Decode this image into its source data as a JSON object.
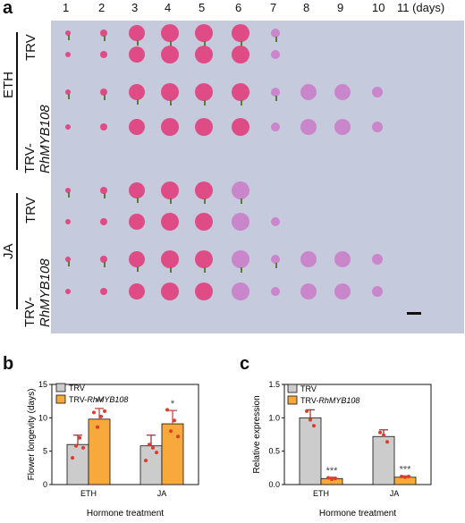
{
  "panel_a": {
    "letter": "a",
    "days": [
      "1",
      "2",
      "3",
      "4",
      "5",
      "6",
      "7",
      "8",
      "9",
      "10",
      "11 (days)"
    ],
    "groups": [
      {
        "hormone": "ETH",
        "rows": [
          {
            "label": "TRV",
            "label_italic": "",
            "counts": [
              7,
              7
            ]
          },
          {
            "label": "TRV-",
            "label_italic": "RhMYB108",
            "counts": [
              10,
              10
            ]
          }
        ]
      },
      {
        "hormone": "JA",
        "rows": [
          {
            "label": "TRV",
            "label_italic": "",
            "counts": [
              6,
              7
            ]
          },
          {
            "label": "TRV-",
            "label_italic": "RhMYB108",
            "counts": [
              10,
              10
            ]
          }
        ]
      }
    ],
    "colors": {
      "background": "#c5cadd",
      "flower": "#e0457f",
      "flower_late": "#c97ac8"
    }
  },
  "panel_b": {
    "letter": "b",
    "legend": [
      {
        "label": "TRV",
        "label_italic": "",
        "color": "#cccccc"
      },
      {
        "label": "TRV-",
        "label_italic": "RhMYB108",
        "color": "#f7a93b"
      }
    ],
    "ylabel": "Flower longevity (days)",
    "xlabel": "Hormone treatment"
  },
  "panel_c": {
    "letter": "c",
    "legend": [
      {
        "label": "TRV",
        "label_italic": "",
        "color": "#cccccc"
      },
      {
        "label": "TRV-",
        "label_italic": "RhMYB108",
        "color": "#f7a93b"
      }
    ],
    "ylabel": "Relative expression",
    "xlabel": "Hormone treatment"
  },
  "chart_data": [
    {
      "type": "bar",
      "categories": [
        "ETH",
        "JA"
      ],
      "series": [
        {
          "name": "TRV",
          "values": [
            6.0,
            5.8
          ],
          "errors": [
            1.4,
            1.6
          ],
          "points": [
            [
              4.0,
              5.8,
              7.0,
              5.5
            ],
            [
              3.6,
              6.0,
              5.5,
              4.8
            ]
          ],
          "color": "#cccccc"
        },
        {
          "name": "TRV-RhMYB108",
          "values": [
            9.8,
            9.1
          ],
          "errors": [
            1.6,
            2.0
          ],
          "points": [
            [
              10.8,
              8.6,
              10.2,
              11.0
            ],
            [
              11.2,
              8.0,
              9.6,
              7.2
            ]
          ],
          "color": "#f7a93b"
        }
      ],
      "significance": [
        [
          "",
          "**"
        ],
        [
          "",
          "*"
        ]
      ],
      "ylabel": "Flower longevity (days)",
      "xlabel": "Hormone treatment",
      "ylim": [
        0,
        15
      ],
      "yticks": [
        0,
        5,
        10,
        15
      ]
    },
    {
      "type": "bar",
      "categories": [
        "ETH",
        "JA"
      ],
      "series": [
        {
          "name": "TRV",
          "values": [
            1.0,
            0.72
          ],
          "errors": [
            0.12,
            0.1
          ],
          "points": [
            [
              1.1,
              0.97,
              0.88
            ],
            [
              0.78,
              0.74,
              0.64
            ]
          ],
          "color": "#cccccc"
        },
        {
          "name": "TRV-RhMYB108",
          "values": [
            0.09,
            0.11
          ],
          "errors": [
            0.02,
            0.02
          ],
          "points": [
            [
              0.1,
              0.08,
              0.09
            ],
            [
              0.12,
              0.11,
              0.12
            ]
          ],
          "color": "#f7a93b"
        }
      ],
      "significance": [
        [
          "",
          "***"
        ],
        [
          "",
          "***"
        ]
      ],
      "ylabel": "Relative expression",
      "xlabel": "Hormone treatment",
      "ylim": [
        0,
        1.5
      ],
      "yticks": [
        "0.0",
        "0.5",
        "1.0",
        "1.5"
      ]
    }
  ]
}
